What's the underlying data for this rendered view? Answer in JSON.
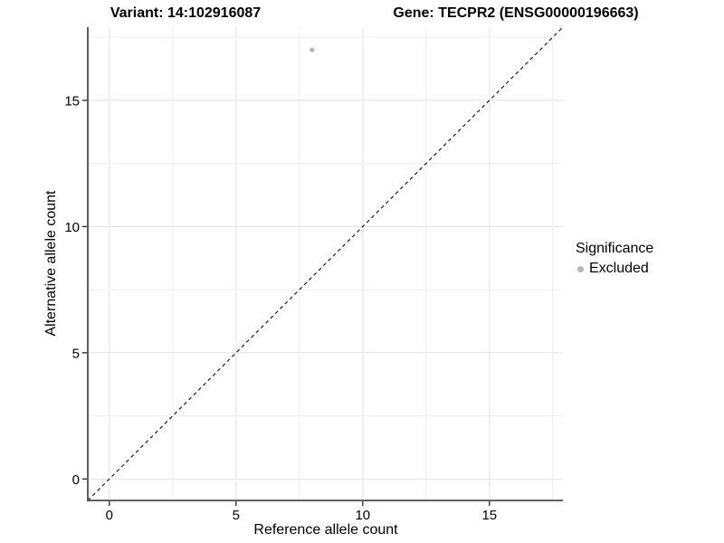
{
  "colors": {
    "background": "#ffffff",
    "axis_line": "#4d4d4d",
    "tick_mark": "#333333",
    "grid_major": "#e7e7e7",
    "grid_minor": "#f2f2f2",
    "dashed_line": "#1a1a1a",
    "text": "#000000",
    "point": "#b5b5b5"
  },
  "chart_data": {
    "type": "scatter",
    "title_left": "Variant: 14:102916087",
    "title_right": "Gene: TECPR2 (ENSG00000196663)",
    "xlabel": "Reference allele count",
    "ylabel": "Alternative allele count",
    "xticks": [
      0,
      5,
      10,
      15
    ],
    "yticks": [
      0,
      5,
      10,
      15
    ],
    "xlim": [
      -0.85,
      17.9
    ],
    "ylim": [
      -0.85,
      17.9
    ],
    "grid": "on",
    "grid_interval": 2.5,
    "identity_line": {
      "style": "dashed",
      "equation": "y = x"
    },
    "series": [
      {
        "name": "Excluded",
        "color": "#b5b5b5",
        "points": [
          {
            "x": 8,
            "y": 17
          }
        ]
      }
    ],
    "legend": {
      "title": "Significance",
      "position": "right",
      "entries": [
        {
          "label": "Excluded",
          "color": "#b5b5b5"
        }
      ]
    }
  }
}
